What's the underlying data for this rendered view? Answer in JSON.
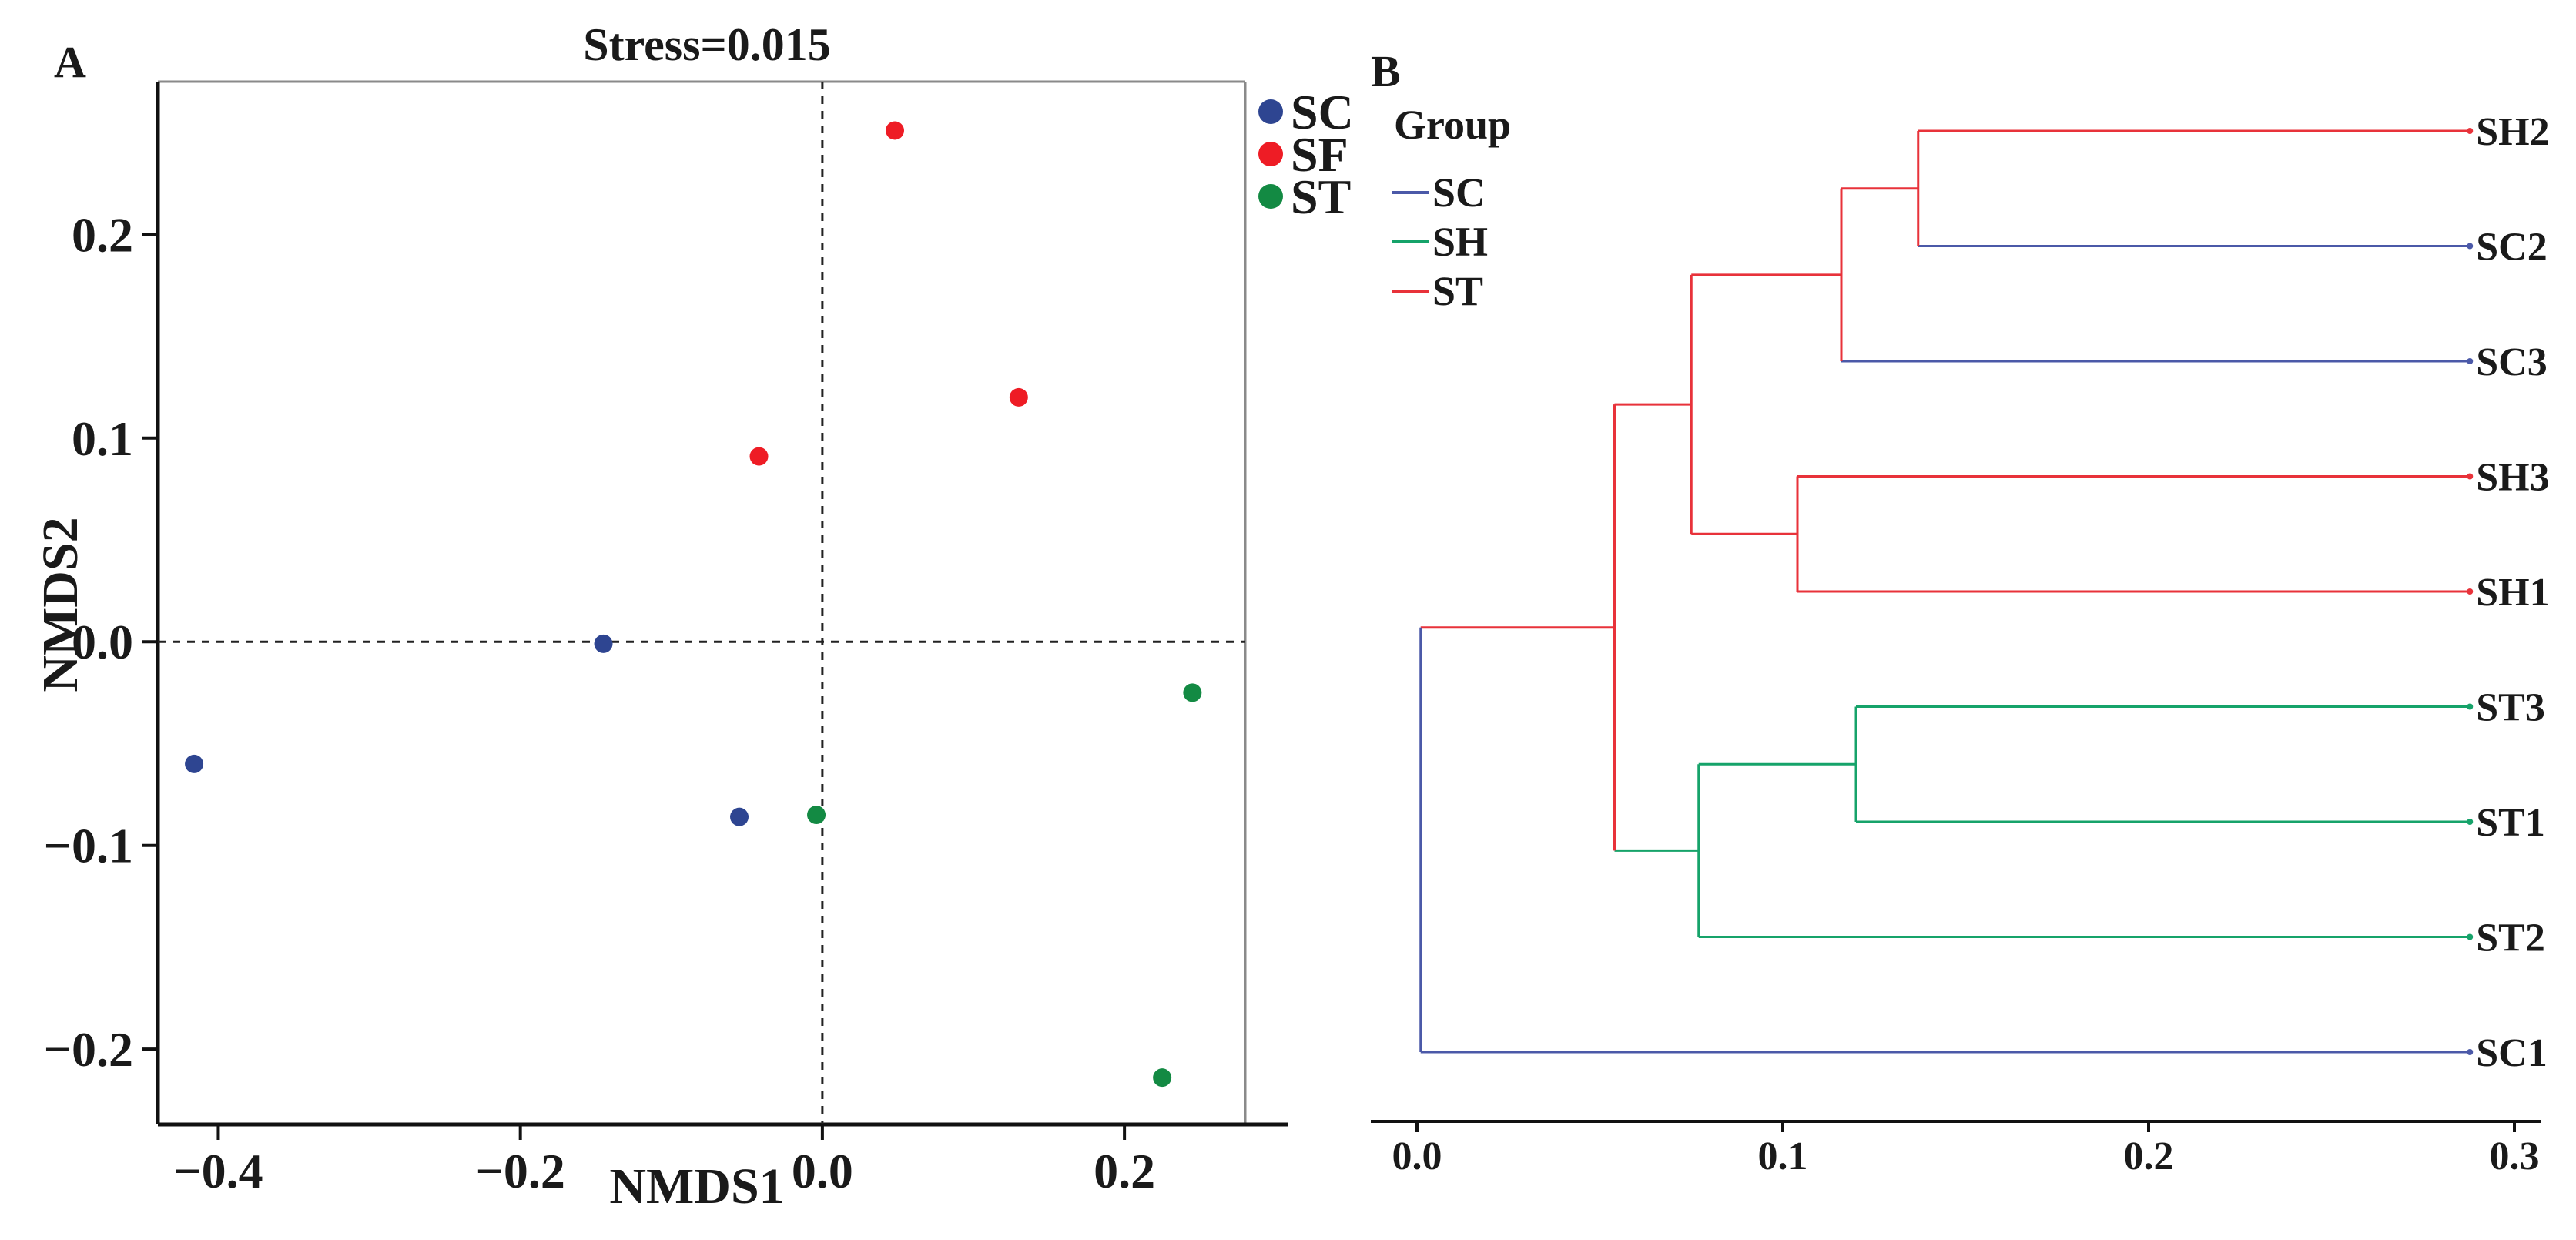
{
  "chart_data": [
    {
      "type": "scatter",
      "panel_label": "A",
      "title": "Stress=0.015",
      "xlabel": "NMDS1",
      "ylabel": "NMDS2",
      "xlim": [
        -0.44,
        0.28
      ],
      "ylim": [
        -0.237,
        0.275
      ],
      "xticks": [
        -0.4,
        -0.2,
        0.0,
        0.2
      ],
      "xtick_labels": [
        "−0.4",
        "−0.2",
        "0.0",
        "0.2"
      ],
      "yticks": [
        -0.2,
        -0.1,
        0.0,
        0.1,
        0.2
      ],
      "ytick_labels": [
        "−0.2",
        "−0.1",
        "0.0",
        "0.1",
        "0.2"
      ],
      "reference_lines": {
        "x": 0.0,
        "y": 0.0,
        "style": "dashed"
      },
      "legend_position": "outside-top-right",
      "series": [
        {
          "name": "SC",
          "color": "#2e4591",
          "points": [
            {
              "x": -0.416,
              "y": -0.06
            },
            {
              "x": -0.145,
              "y": -0.001
            },
            {
              "x": -0.055,
              "y": -0.086
            }
          ]
        },
        {
          "name": "SF",
          "color": "#ee1c25",
          "points": [
            {
              "x": 0.048,
              "y": 0.251
            },
            {
              "x": 0.13,
              "y": 0.12
            },
            {
              "x": -0.042,
              "y": 0.091
            }
          ]
        },
        {
          "name": "ST",
          "color": "#138a43",
          "points": [
            {
              "x": -0.004,
              "y": -0.085
            },
            {
              "x": 0.245,
              "y": -0.025
            },
            {
              "x": 0.225,
              "y": -0.214
            }
          ]
        }
      ]
    },
    {
      "type": "dendrogram",
      "panel_label": "B",
      "legend_title": "Group",
      "legend_position": "top-left",
      "groups": [
        {
          "name": "SC",
          "color": "#4b59a8"
        },
        {
          "name": "SH",
          "color": "#16a36a"
        },
        {
          "name": "ST",
          "color": "#e8323a"
        }
      ],
      "xlim": [
        -0.01,
        0.3
      ],
      "xticks": [
        0.0,
        0.1,
        0.2,
        0.3
      ],
      "xtick_labels": [
        "0.0",
        "0.1",
        "0.2",
        "0.3"
      ],
      "leaves": [
        "SH2",
        "SC2",
        "SC3",
        "SH3",
        "SH1",
        "ST3",
        "ST1",
        "ST2",
        "SC1"
      ],
      "leaf_colors": [
        "#e8323a",
        "#4b59a8",
        "#4b59a8",
        "#e8323a",
        "#e8323a",
        "#16a36a",
        "#16a36a",
        "#16a36a",
        "#4b59a8"
      ],
      "merges": [
        {
          "id": "n1",
          "left": "SH2",
          "right": "SC2",
          "height": 0.137,
          "color": "#e8323a"
        },
        {
          "id": "n2",
          "left": "n1",
          "right": "SC3",
          "height": 0.116,
          "color": "#e8323a"
        },
        {
          "id": "n3",
          "left": "SH3",
          "right": "SH1",
          "height": 0.104,
          "color": "#e8323a"
        },
        {
          "id": "n4",
          "left": "n2",
          "right": "n3",
          "height": 0.075,
          "color": "#e8323a"
        },
        {
          "id": "n5",
          "left": "ST3",
          "right": "ST1",
          "height": 0.12,
          "color": "#16a36a"
        },
        {
          "id": "n6",
          "left": "n5",
          "right": "ST2",
          "height": 0.077,
          "color": "#16a36a"
        },
        {
          "id": "n7",
          "left": "n4",
          "right": "n6",
          "height": 0.054,
          "color": "#e8323a"
        },
        {
          "id": "n8",
          "left": "n7",
          "right": "SC1",
          "height": 0.001,
          "color": "#4b59a8"
        }
      ],
      "leaf_height": 0.287
    }
  ]
}
